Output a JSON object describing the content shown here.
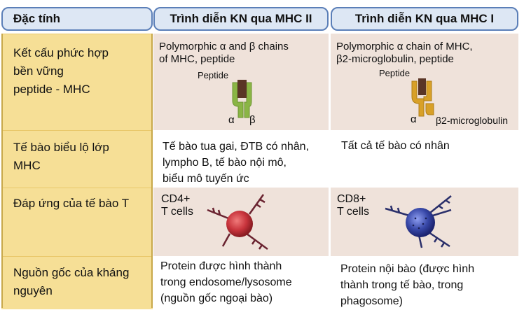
{
  "headers": {
    "col1": "Đặc tính",
    "col2": "Trình diễn KN qua MHC II",
    "col3": "Trình diễn KN qua MHC I"
  },
  "rows": [
    {
      "property": [
        "Kết cấu phức hợp",
        "bền vững",
        "peptide - MHC"
      ],
      "mhc2": {
        "caption": [
          "Polymorphic α and β chains",
          "of MHC, peptide"
        ],
        "peptide_label": "Peptide",
        "alpha_label": "α",
        "beta_label": "β"
      },
      "mhc1": {
        "caption": [
          "Polymorphic α chain of MHC,",
          "β2-microglobulin, peptide"
        ],
        "peptide_label": "Peptide",
        "alpha_label": "α",
        "b2m_label": "β2-microglobulin"
      }
    },
    {
      "property": [
        "Tế bào biểu lộ lớp",
        "MHC"
      ],
      "mhc2": [
        "Tế bào tua gai, ĐTB có nhân,",
        "lympho B, tế bào nội mô,",
        "biểu mô tuyến ức"
      ],
      "mhc1": [
        "Tất cả tế bào có nhân"
      ]
    },
    {
      "property": [
        "Đáp ứng của tế bào T"
      ],
      "mhc2": {
        "label_top": "CD4+",
        "label_bottom": "T cells"
      },
      "mhc1": {
        "label_top": "CD8+",
        "label_bottom": "T cells"
      }
    },
    {
      "property": [
        "Nguồn gốc của kháng",
        "nguyên"
      ],
      "mhc2": [
        "Protein được hình thành",
        "trong endosome/lysosome",
        "(nguồn gốc ngoại bào)"
      ],
      "mhc1": [
        "Protein nội bào (được hình",
        "thành trong tế bào, trong",
        "phagosome)"
      ]
    }
  ],
  "colors": {
    "header_bg": "#dde7f4",
    "header_border": "#5b7fb8",
    "left_col": "#f6df96",
    "tan_cell": "#efe2da",
    "mhc_green": "#8ab545",
    "mhc_gold": "#d8a028",
    "peptide": "#5a3526",
    "cd4_cell": "#c8343c",
    "cd8_cell": "#3848a8"
  }
}
